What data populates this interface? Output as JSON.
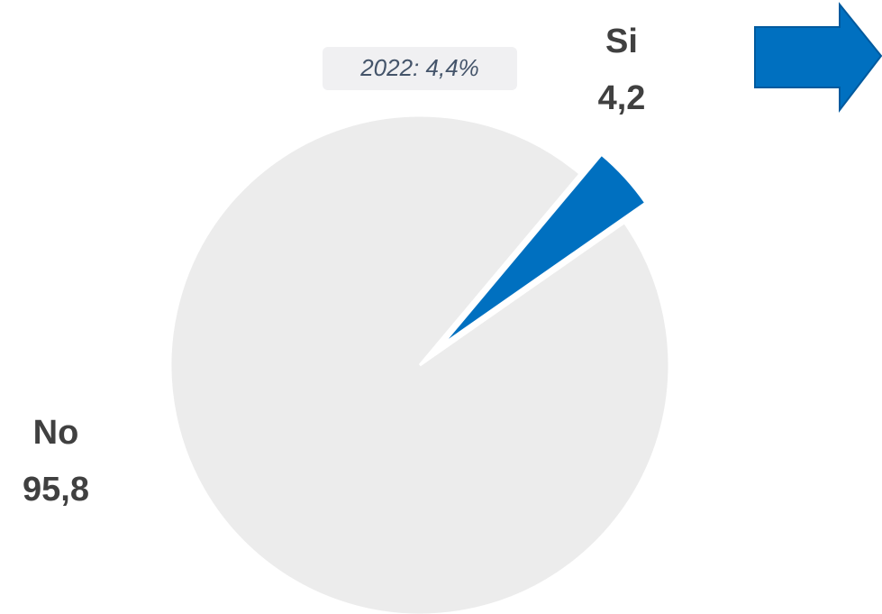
{
  "chart_data": {
    "type": "pie",
    "categories": [
      "Si",
      "No"
    ],
    "values": [
      4.2,
      95.8
    ],
    "value_labels": [
      "4,2",
      "95,8"
    ],
    "colors": [
      "#0070c0",
      "#ececec"
    ],
    "annotation": "2022: 4,4%"
  }
}
